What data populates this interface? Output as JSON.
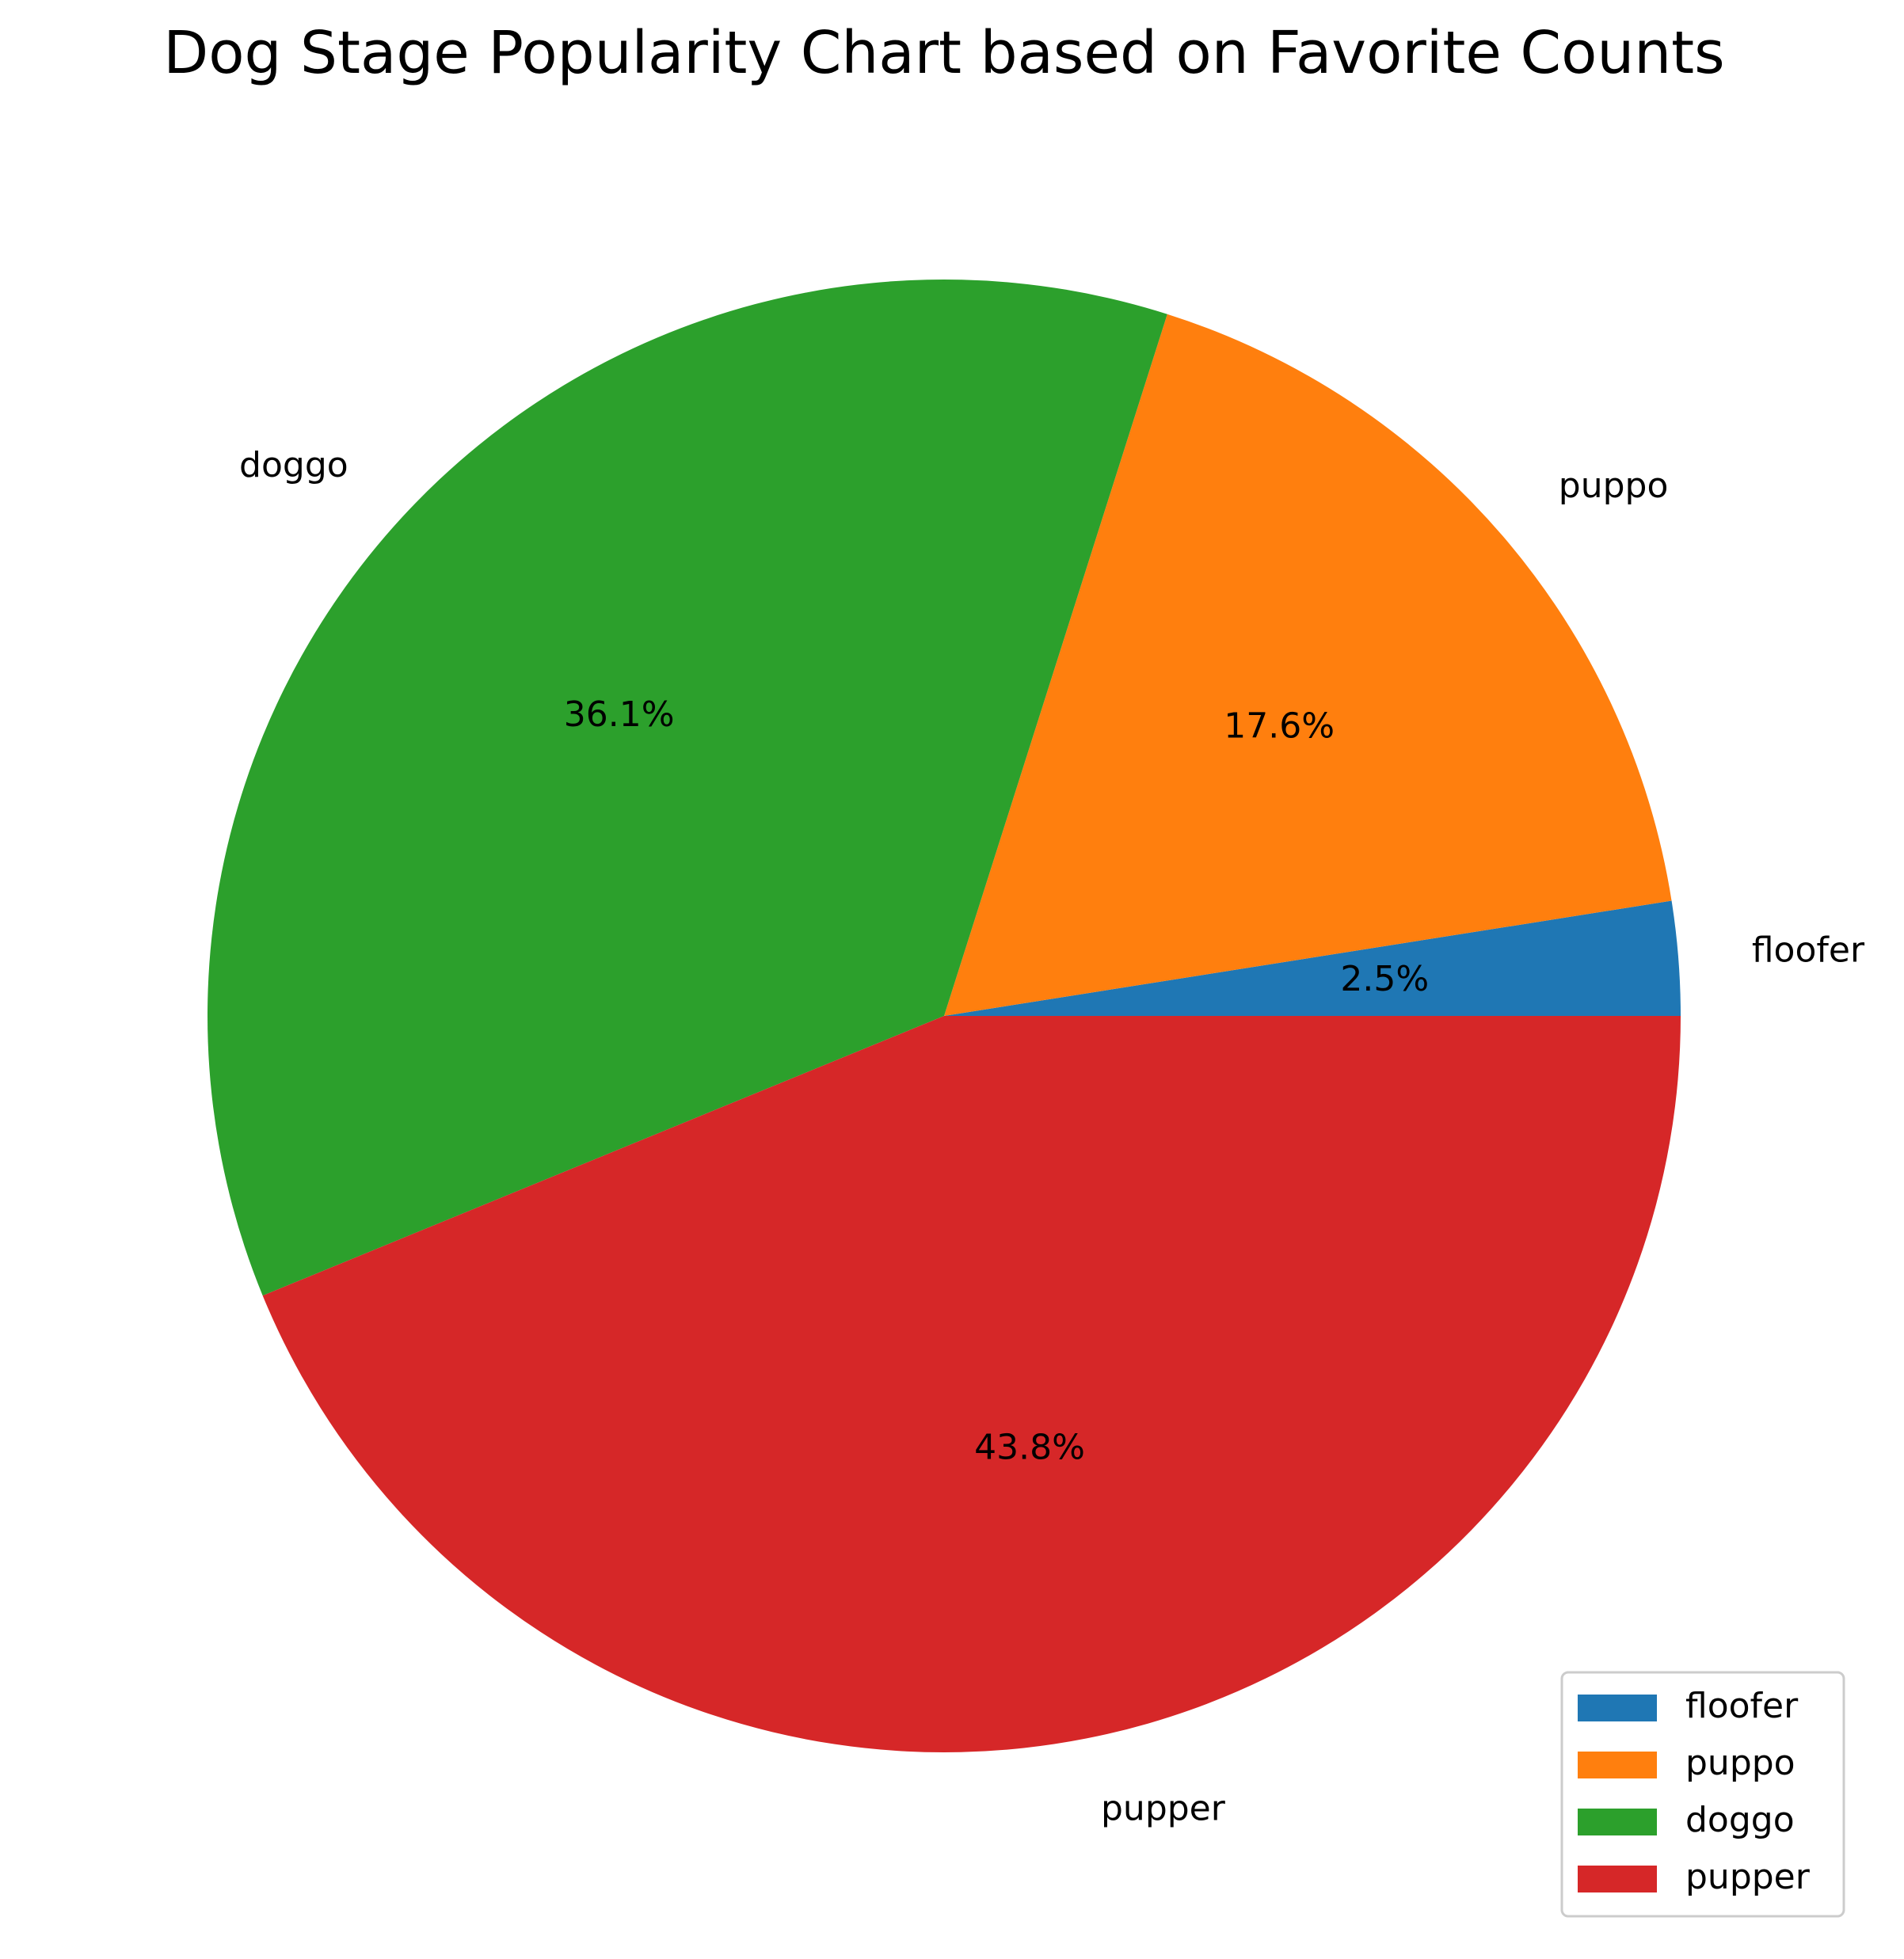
{
  "chart_data": {
    "type": "pie",
    "title": "Dog Stage Popularity Chart based on Favorite Counts",
    "categories": [
      "floofer",
      "puppo",
      "doggo",
      "pupper"
    ],
    "values": [
      2.5,
      17.6,
      36.1,
      43.8
    ],
    "value_labels": [
      "2.5%",
      "17.6%",
      "36.1%",
      "43.8%"
    ],
    "colors": [
      "#1f77b4",
      "#ff7f0e",
      "#2ca02c",
      "#d62728"
    ],
    "start_angle_deg": 0,
    "direction": "counterclockwise",
    "legend": {
      "placement": "lower-right",
      "entries": [
        "floofer",
        "puppo",
        "doggo",
        "pupper"
      ]
    }
  }
}
